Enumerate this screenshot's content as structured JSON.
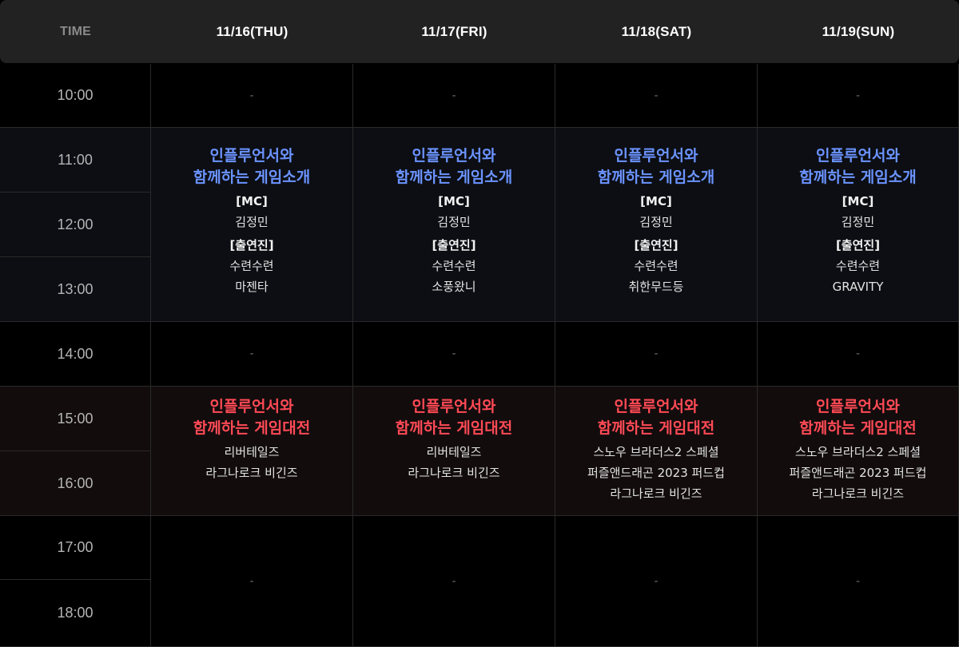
{
  "header": {
    "time_label": "TIME",
    "days": [
      "11/16(THU)",
      "11/17(FRI)",
      "11/18(SAT)",
      "11/19(SUN)"
    ]
  },
  "times": [
    "10:00",
    "11:00",
    "12:00",
    "13:00",
    "14:00",
    "15:00",
    "16:00",
    "17:00",
    "18:00"
  ],
  "empty_mark": "-",
  "intro_block": {
    "title_line1": "인플루언서와",
    "title_line2": "함께하는 게임소개",
    "mc_label": "[MC]",
    "cast_label": "[출연진]",
    "days": [
      {
        "mc": "김정민",
        "cast": [
          "수련수련",
          "마젠타"
        ]
      },
      {
        "mc": "김정민",
        "cast": [
          "수련수련",
          "소풍왔니"
        ]
      },
      {
        "mc": "김정민",
        "cast": [
          "수련수련",
          "취한무드등"
        ]
      },
      {
        "mc": "김정민",
        "cast": [
          "수련수련",
          "GRAVITY"
        ]
      }
    ]
  },
  "match_block": {
    "title_line1": "인플루언서와",
    "title_line2": "함께하는 게임대전",
    "days": [
      {
        "games": [
          "리버테일즈",
          "라그나로크 비긴즈"
        ]
      },
      {
        "games": [
          "리버테일즈",
          "라그나로크 비긴즈"
        ]
      },
      {
        "games": [
          "스노우 브라더스2 스페셜",
          "퍼즐앤드래곤 2023 퍼드컵",
          "라그나로크 비긴즈"
        ]
      },
      {
        "games": [
          "스노우 브라더스2 스페셜",
          "퍼즐앤드래곤 2023 퍼드컵",
          "라그나로크 비긴즈"
        ]
      }
    ]
  },
  "colors": {
    "intro_title": "#6b93ff",
    "match_title": "#ff4a55",
    "header_bg": "#222222"
  }
}
